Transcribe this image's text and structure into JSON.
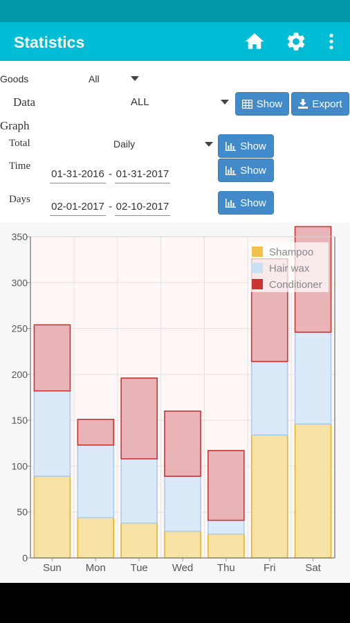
{
  "app_bar": {
    "title": "Statistics",
    "icons": [
      "home-icon",
      "gear-icon",
      "more-vert-icon"
    ]
  },
  "filters": {
    "goods_label": "Goods",
    "goods_value": "All",
    "data_label": "Data",
    "data_value": "ALL",
    "data_show_label": "Show",
    "export_label": "Export",
    "graph_label": "Graph",
    "total_label": "Total",
    "total_value": "Daily",
    "total_show_label": "Show",
    "time_label": "Time",
    "time_from": "01-31-2016",
    "time_to": "01-31-2017",
    "time_show_label": "Show",
    "days_label": "Days",
    "days_from": "02-01-2017",
    "days_to": "02-10-2017",
    "days_show_label": "Show",
    "date_separator": "-"
  },
  "colors": {
    "app_bar": "#00bcd4",
    "status_bar": "#0097a7",
    "button": "#428bca",
    "shampoo_fill": "#f7e2a6",
    "shampoo_stroke": "#e6b422",
    "hairwax_fill": "#dce9f8",
    "hairwax_stroke": "#a9ccef",
    "conditioner_fill": "#e8b4b8",
    "conditioner_stroke": "#cc3333"
  },
  "chart_data": {
    "type": "bar",
    "stacked": true,
    "categories": [
      "Sun",
      "Mon",
      "Tue",
      "Wed",
      "Thu",
      "Fri",
      "Sat"
    ],
    "series": [
      {
        "name": "Shampoo",
        "values": [
          89,
          44,
          38,
          29,
          26,
          134,
          146
        ]
      },
      {
        "name": "Hair wax",
        "values": [
          93,
          79,
          70,
          60,
          15,
          80,
          100
        ]
      },
      {
        "name": "Conditioner",
        "values": [
          72,
          28,
          88,
          71,
          76,
          112,
          115
        ]
      }
    ],
    "ylim": [
      0,
      350
    ],
    "yticks": [
      0,
      50,
      100,
      150,
      200,
      250,
      300,
      350
    ],
    "grid": true,
    "legend_position": "top-right"
  }
}
